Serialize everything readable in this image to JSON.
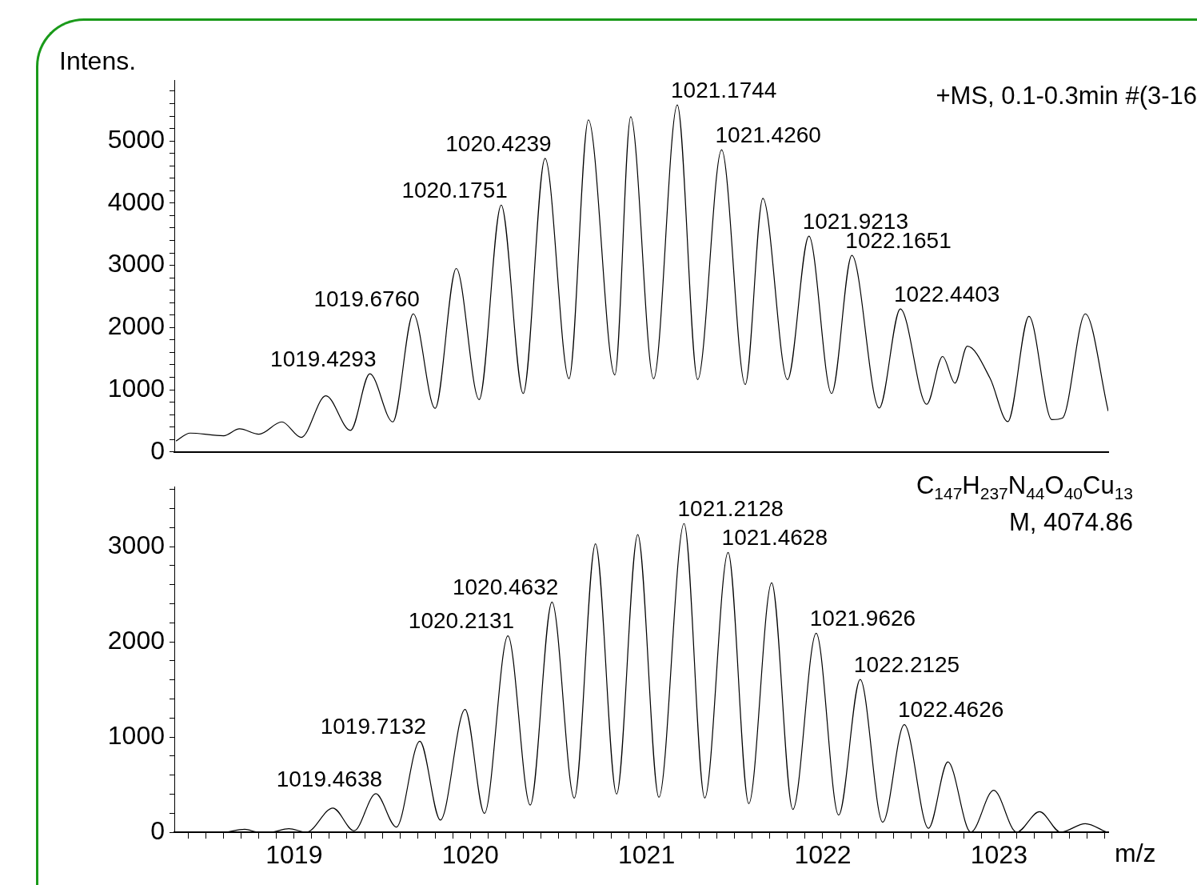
{
  "chart_data": [
    {
      "type": "line",
      "ylabel": "Intens.",
      "annotations": [
        "+MS, 0.1-0.3min #(3-16",
        {
          "text": "1019.4293",
          "x": 1019.4293,
          "y": 1256
        },
        {
          "text": "1019.6760",
          "x": 1019.676,
          "y": 2220
        },
        {
          "text": "1020.1751",
          "x": 1020.1751,
          "y": 3970
        },
        {
          "text": "1020.4239",
          "x": 1020.4239,
          "y": 4720
        },
        {
          "text": "1021.1744",
          "x": 1021.1744,
          "y": 5580
        },
        {
          "text": "1021.4260",
          "x": 1021.426,
          "y": 4860
        },
        {
          "text": "1021.9213",
          "x": 1021.9213,
          "y": 3470
        },
        {
          "text": "1022.1651",
          "x": 1022.1651,
          "y": 3160
        },
        {
          "text": "1022.4403",
          "x": 1022.4403,
          "y": 2300
        }
      ],
      "series": [
        {
          "color": "#000000",
          "x": [
            1018.33,
            1018.41,
            1018.6,
            1018.69,
            1018.8,
            1018.93,
            1019.04,
            1019.18,
            1019.32,
            1019.4293,
            1019.56,
            1019.676,
            1019.8,
            1019.92,
            1020.05,
            1020.1751,
            1020.3,
            1020.4239,
            1020.56,
            1020.67,
            1020.82,
            1020.91,
            1021.04,
            1021.1744,
            1021.29,
            1021.426,
            1021.56,
            1021.66,
            1021.8,
            1021.9213,
            1022.05,
            1022.1651,
            1022.32,
            1022.4403,
            1022.59,
            1022.68,
            1022.75,
            1022.82,
            1022.95,
            1023.05,
            1023.17,
            1023.3,
            1023.36,
            1023.49,
            1023.62
          ],
          "values": [
            176,
            303,
            260,
            371,
            285,
            483,
            235,
            903,
            347,
            1256,
            483,
            2220,
            700,
            2950,
            842,
            3970,
            940,
            4720,
            1176,
            5340,
            1238,
            5390,
            1176,
            5580,
            1163,
            4860,
            1083,
            4077,
            1163,
            3470,
            940,
            3160,
            705,
            2300,
            767,
            1535,
            1106,
            1700,
            1180,
            488,
            2180,
            520,
            545,
            2220,
            656
          ]
        }
      ],
      "xlim": [
        1018.32,
        1023.62
      ],
      "xticks": [
        1019,
        1020,
        1021,
        1022,
        1023
      ],
      "ylim": [
        0,
        5980
      ],
      "yticks": [
        0,
        {
          "value": 200,
          "label": null
        },
        {
          "value": 400,
          "label": null
        },
        {
          "value": 600,
          "label": null
        },
        {
          "value": 800,
          "label": null
        },
        1000,
        {
          "value": 1200,
          "label": null
        },
        {
          "value": 1400,
          "label": null
        },
        {
          "value": 1600,
          "label": null
        },
        {
          "value": 1800,
          "label": null
        },
        2000,
        {
          "value": 2200,
          "label": null
        },
        {
          "value": 2400,
          "label": null
        },
        {
          "value": 2600,
          "label": null
        },
        {
          "value": 2800,
          "label": null
        },
        3000,
        {
          "value": 3200,
          "label": null
        },
        {
          "value": 3400,
          "label": null
        },
        {
          "value": 3600,
          "label": null
        },
        {
          "value": 3800,
          "label": null
        },
        4000,
        {
          "value": 4200,
          "label": null
        },
        {
          "value": 4400,
          "label": null
        },
        {
          "value": 4600,
          "label": null
        },
        {
          "value": 4800,
          "label": null
        },
        5000,
        {
          "value": 5200,
          "label": null
        },
        {
          "value": 5400,
          "label": null
        },
        {
          "value": 5600,
          "label": null
        },
        {
          "value": 5800,
          "label": null
        }
      ],
      "tick_labels": "y",
      "marker": "none",
      "line_style": "solid"
    },
    {
      "type": "line",
      "xlabel": "m/z",
      "annotations": [
        "C$_{147}$H$_{237}$N$_{44}$O$_{40}$Cu$_{13}$",
        "M, 4074.86",
        {
          "text": "1019.4638",
          "x": 1019.4638,
          "y": 404
        },
        {
          "text": "1019.7132",
          "x": 1019.7132,
          "y": 955
        },
        {
          "text": "1020.2131",
          "x": 1020.2131,
          "y": 2063
        },
        {
          "text": "1020.4632",
          "x": 1020.4632,
          "y": 2418
        },
        {
          "text": "1021.2128",
          "x": 1021.2128,
          "y": 3243
        },
        {
          "text": "1021.4628",
          "x": 1021.4628,
          "y": 2940
        },
        {
          "text": "1021.9626",
          "x": 1021.9626,
          "y": 2090
        },
        {
          "text": "1022.2125",
          "x": 1022.2125,
          "y": 1604
        },
        {
          "text": "1022.4626",
          "x": 1022.4626,
          "y": 1130
        }
      ],
      "series": [
        {
          "color": "#000000",
          "x": [
            1018.61,
            1018.72,
            1018.8,
            1018.86,
            1018.97,
            1019.07,
            1019.22,
            1019.34,
            1019.4638,
            1019.58,
            1019.7132,
            1019.83,
            1019.97,
            1020.08,
            1020.2131,
            1020.34,
            1020.4632,
            1020.59,
            1020.71,
            1020.83,
            1020.95,
            1021.07,
            1021.2128,
            1021.33,
            1021.4628,
            1021.58,
            1021.71,
            1021.83,
            1021.9626,
            1022.09,
            1022.2125,
            1022.34,
            1022.4626,
            1022.6,
            1022.71,
            1022.84,
            1022.97,
            1023.1,
            1023.23,
            1023.35,
            1023.49,
            1023.61
          ],
          "values": [
            0,
            30,
            0,
            0,
            37,
            0,
            254,
            15,
            404,
            54,
            955,
            127,
            1290,
            198,
            2063,
            284,
            2418,
            358,
            3030,
            400,
            3127,
            366,
            3243,
            358,
            2940,
            300,
            2620,
            239,
            2090,
            179,
            1604,
            104,
            1130,
            41,
            739,
            0,
            440,
            0,
            216,
            0,
            90,
            0
          ]
        }
      ],
      "xlim": [
        1018.32,
        1023.62
      ],
      "xticks": [
        {
          "value": 1018.4,
          "label": null
        },
        {
          "value": 1018.5,
          "label": null
        },
        {
          "value": 1018.6,
          "label": null
        },
        {
          "value": 1018.7,
          "label": null
        },
        {
          "value": 1018.8,
          "label": null
        },
        {
          "value": 1018.9,
          "label": null
        },
        1019,
        {
          "value": 1019.1,
          "label": null
        },
        {
          "value": 1019.2,
          "label": null
        },
        {
          "value": 1019.3,
          "label": null
        },
        {
          "value": 1019.4,
          "label": null
        },
        {
          "value": 1019.5,
          "label": null
        },
        {
          "value": 1019.6,
          "label": null
        },
        {
          "value": 1019.7,
          "label": null
        },
        {
          "value": 1019.8,
          "label": null
        },
        {
          "value": 1019.9,
          "label": null
        },
        1020,
        {
          "value": 1020.1,
          "label": null
        },
        {
          "value": 1020.2,
          "label": null
        },
        {
          "value": 1020.3,
          "label": null
        },
        {
          "value": 1020.4,
          "label": null
        },
        {
          "value": 1020.5,
          "label": null
        },
        {
          "value": 1020.6,
          "label": null
        },
        {
          "value": 1020.7,
          "label": null
        },
        {
          "value": 1020.8,
          "label": null
        },
        {
          "value": 1020.9,
          "label": null
        },
        1021,
        {
          "value": 1021.1,
          "label": null
        },
        {
          "value": 1021.2,
          "label": null
        },
        {
          "value": 1021.3,
          "label": null
        },
        {
          "value": 1021.4,
          "label": null
        },
        {
          "value": 1021.5,
          "label": null
        },
        {
          "value": 1021.6,
          "label": null
        },
        {
          "value": 1021.7,
          "label": null
        },
        {
          "value": 1021.8,
          "label": null
        },
        {
          "value": 1021.9,
          "label": null
        },
        1022,
        {
          "value": 1022.1,
          "label": null
        },
        {
          "value": 1022.2,
          "label": null
        },
        {
          "value": 1022.3,
          "label": null
        },
        {
          "value": 1022.4,
          "label": null
        },
        {
          "value": 1022.5,
          "label": null
        },
        {
          "value": 1022.6,
          "label": null
        },
        {
          "value": 1022.7,
          "label": null
        },
        {
          "value": 1022.8,
          "label": null
        },
        {
          "value": 1022.9,
          "label": null
        },
        1023,
        {
          "value": 1023.1,
          "label": null
        },
        {
          "value": 1023.2,
          "label": null
        },
        {
          "value": 1023.3,
          "label": null
        },
        {
          "value": 1023.4,
          "label": null
        },
        {
          "value": 1023.5,
          "label": null
        },
        {
          "value": 1023.6,
          "label": null
        }
      ],
      "ylim": [
        0,
        3630
      ],
      "yticks": [
        0,
        {
          "value": 200,
          "label": null
        },
        {
          "value": 400,
          "label": null
        },
        {
          "value": 600,
          "label": null
        },
        {
          "value": 800,
          "label": null
        },
        1000,
        {
          "value": 1200,
          "label": null
        },
        {
          "value": 1400,
          "label": null
        },
        {
          "value": 1600,
          "label": null
        },
        {
          "value": 1800,
          "label": null
        },
        2000,
        {
          "value": 2200,
          "label": null
        },
        {
          "value": 2400,
          "label": null
        },
        {
          "value": 2600,
          "label": null
        },
        {
          "value": 2800,
          "label": null
        },
        3000,
        {
          "value": 3200,
          "label": null
        },
        {
          "value": 3400,
          "label": null
        },
        {
          "value": 3600,
          "label": null
        }
      ],
      "marker": "none",
      "line_style": "solid"
    }
  ]
}
